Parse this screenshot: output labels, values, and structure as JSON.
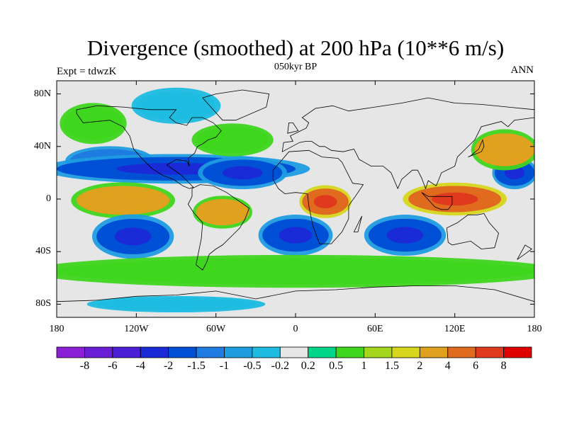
{
  "title": "Divergence (smoothed) at 200 hPa (10**6 m/s)",
  "subtitle": "050kyr BP",
  "left_label": "Expt = tdwzK",
  "right_label": "ANN",
  "map": {
    "lat_ticks": [
      {
        "label": "80N",
        "lat": 80
      },
      {
        "label": "40N",
        "lat": 40
      },
      {
        "label": "0",
        "lat": 0
      },
      {
        "label": "40S",
        "lat": -40
      },
      {
        "label": "80S",
        "lat": -80
      }
    ],
    "lon_ticks": [
      {
        "label": "180",
        "lon": -180
      },
      {
        "label": "120W",
        "lon": -120
      },
      {
        "label": "60W",
        "lon": -60
      },
      {
        "label": "0",
        "lon": 0
      },
      {
        "label": "60E",
        "lon": 60
      },
      {
        "label": "120E",
        "lon": 120
      },
      {
        "label": "180",
        "lon": 180
      }
    ],
    "lon_range": [
      -180,
      180
    ],
    "lat_range": [
      -90,
      90
    ],
    "background_color": "#e6e6e6",
    "features": [
      {
        "name": "n-pacific-green",
        "level": 0.5,
        "lon": [
          -175,
          -130
        ],
        "lat": [
          45,
          70
        ]
      },
      {
        "name": "n-pacific-blue",
        "level": -1.5,
        "lon": [
          -170,
          -110
        ],
        "lat": [
          20,
          38
        ]
      },
      {
        "name": "subtropical-n-blue-band",
        "level": -2,
        "lon": [
          -180,
          0
        ],
        "lat": [
          14,
          32
        ]
      },
      {
        "name": "subtropical-n-atl",
        "level": -2,
        "lon": [
          -70,
          -10
        ],
        "lat": [
          10,
          30
        ]
      },
      {
        "name": "equatorial-pacific-orange",
        "level": 2,
        "lon": [
          -165,
          -95
        ],
        "lat": [
          -12,
          10
        ]
      },
      {
        "name": "amazon-orange",
        "level": 2,
        "lon": [
          -75,
          -35
        ],
        "lat": [
          -20,
          0
        ]
      },
      {
        "name": "africa-red",
        "level": 4,
        "lon": [
          5,
          40
        ],
        "lat": [
          -12,
          8
        ]
      },
      {
        "name": "maritime-continent-red",
        "level": 4,
        "lon": [
          85,
          155
        ],
        "lat": [
          -10,
          10
        ]
      },
      {
        "name": "s-pacific-blue",
        "level": -2,
        "lon": [
          -150,
          -95
        ],
        "lat": [
          -42,
          -15
        ]
      },
      {
        "name": "s-atlantic-blue",
        "level": -2,
        "lon": [
          -25,
          25
        ],
        "lat": [
          -40,
          -15
        ]
      },
      {
        "name": "s-indian-blue",
        "level": -2,
        "lon": [
          55,
          110
        ],
        "lat": [
          -40,
          -15
        ]
      },
      {
        "name": "austral-green-band",
        "level": 0.5,
        "lon": [
          -180,
          180
        ],
        "lat": [
          -65,
          -45
        ]
      },
      {
        "name": "nw-pacific-blue",
        "level": -2,
        "lon": [
          150,
          180
        ],
        "lat": [
          10,
          30
        ]
      },
      {
        "name": "n-atlantic-green",
        "level": 0.5,
        "lon": [
          -75,
          -20
        ],
        "lat": [
          35,
          55
        ]
      },
      {
        "name": "arctic-blue",
        "level": -0.5,
        "lon": [
          -120,
          -60
        ],
        "lat": [
          60,
          82
        ]
      },
      {
        "name": "n-asia-orange",
        "level": 2,
        "lon": [
          135,
          180
        ],
        "lat": [
          25,
          50
        ]
      },
      {
        "name": "antarctic-blue",
        "level": -0.5,
        "lon": [
          -150,
          -30
        ],
        "lat": [
          -85,
          -75
        ]
      }
    ]
  },
  "colorbar": {
    "labels": [
      "-8",
      "-6",
      "-4",
      "-2",
      "-1.5",
      "-1",
      "-0.5",
      "-0.2",
      "0.2",
      "0.5",
      "1",
      "1.5",
      "2",
      "4",
      "6",
      "8"
    ],
    "colors": [
      "#8a1fd6",
      "#6a1fd6",
      "#4a1fd6",
      "#1a2ad6",
      "#0050d6",
      "#1e7ce0",
      "#1e9ce0",
      "#1ebce0",
      "#e6e6e6",
      "#00d68a",
      "#3fd61e",
      "#a4d61e",
      "#d6d61e",
      "#e0a21e",
      "#e06a1e",
      "#e03a1e",
      "#e00000"
    ]
  }
}
